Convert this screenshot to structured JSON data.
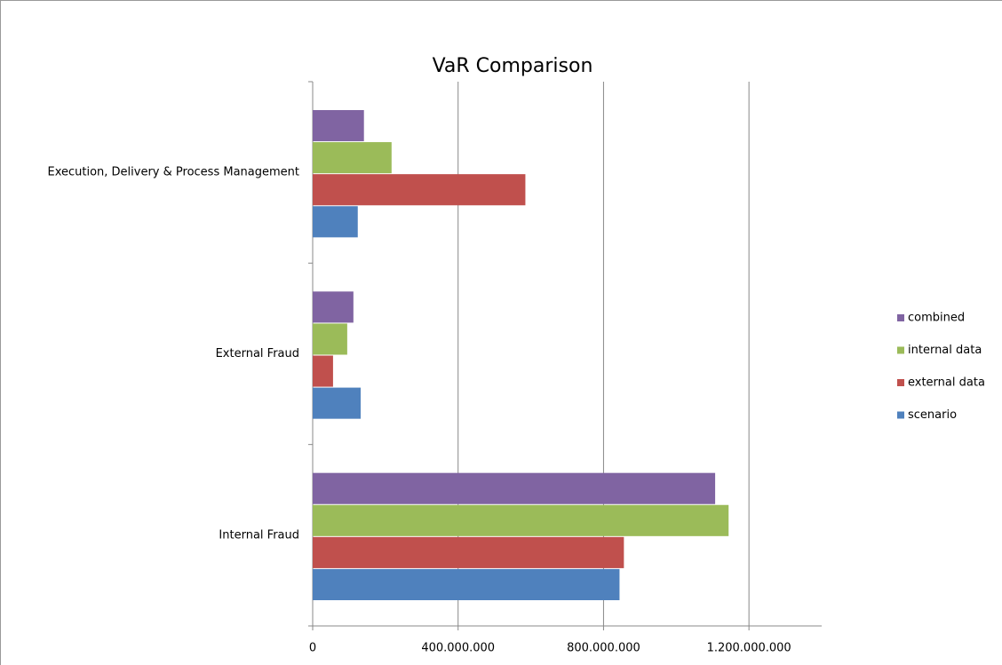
{
  "chart_data": {
    "type": "barh",
    "title": "VaR Comparison",
    "categories": [
      "Internal Fraud",
      "External Fraud",
      "Execution, Delivery & Process Management"
    ],
    "series": [
      {
        "name": "scenario",
        "color": "#4f81bd",
        "values": [
          844000000,
          132000000,
          124000000
        ]
      },
      {
        "name": "external data",
        "color": "#c0504d",
        "values": [
          856000000,
          56000000,
          585000000
        ]
      },
      {
        "name": "internal data",
        "color": "#9bbb59",
        "values": [
          1144000000,
          95000000,
          217000000
        ]
      },
      {
        "name": "combined",
        "color": "#8064a2",
        "values": [
          1107000000,
          112000000,
          141000000
        ]
      }
    ],
    "xlim": [
      0,
      1400000000
    ],
    "xticks": [
      0,
      {
        "value": 400000000,
        "label": "400.000.000"
      },
      {
        "value": 800000000,
        "label": "800.000.000"
      },
      {
        "value": 1200000000,
        "label": "1.200.000.000"
      }
    ],
    "grid": true,
    "legend": "right"
  }
}
